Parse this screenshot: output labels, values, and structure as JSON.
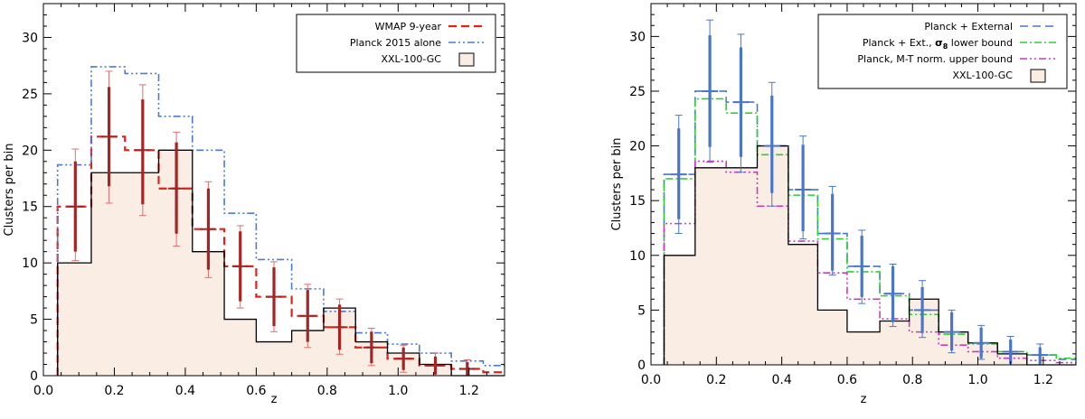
{
  "colors": {
    "fill": "#faede4",
    "xxl": "#000000",
    "wmap": "#e0221b",
    "wmapErr": "#a52525",
    "wmapErrThin": "#e06d6d",
    "planck": "#4a7ad8",
    "external": "#4a76c8",
    "sigma8": "#2fd02f",
    "mt": "#c83dbd"
  },
  "chart_data": [
    {
      "type": "histogram",
      "xlabel": "z",
      "ylabel": "Clusters per bin",
      "xlim": [
        0,
        1.3
      ],
      "ylim": [
        0,
        33
      ],
      "xticks": [
        "0.0",
        "0.2",
        "0.4",
        "0.6",
        "0.8",
        "1.0",
        "1.2"
      ],
      "yticks": [
        "0",
        "5",
        "10",
        "15",
        "20",
        "25",
        "30"
      ],
      "bin_edges": [
        0.04,
        0.135,
        0.23,
        0.325,
        0.42,
        0.51,
        0.6,
        0.7,
        0.79,
        0.88,
        0.97,
        1.06,
        1.15,
        1.24,
        1.3
      ],
      "legend_position": "top-right",
      "series": [
        {
          "name": "WMAP 9-year",
          "style": "dashed",
          "color_key": "wmap",
          "values": [
            15,
            21.2,
            20,
            16.6,
            13,
            9.7,
            7,
            5.3,
            4.3,
            2.5,
            1.5,
            0.9,
            0.6,
            0.3
          ]
        },
        {
          "name": "Planck 2015 alone",
          "style": "dashdotdot",
          "color_key": "planck",
          "values": [
            18.7,
            27.4,
            26.8,
            23,
            20,
            14.4,
            10.3,
            7.7,
            5.7,
            3.8,
            2.8,
            2,
            1.3,
            0.9
          ]
        },
        {
          "name": "XXL-100-GC",
          "style": "filled-step",
          "color_key": "xxl",
          "values": [
            10,
            18,
            18,
            20,
            11,
            5,
            3,
            4,
            6,
            3,
            2,
            1,
            0,
            0
          ]
        }
      ],
      "errorbars": {
        "color_key": "wmapErr",
        "x": [
          0.09,
          0.185,
          0.28,
          0.375,
          0.465,
          0.555,
          0.65,
          0.745,
          0.835,
          0.925,
          1.015,
          1.105,
          1.195
        ],
        "center": [
          15,
          21.2,
          20,
          16.6,
          13,
          9.7,
          7,
          5.3,
          4.3,
          2.5,
          1.5,
          0.9,
          0.6
        ],
        "inner": [
          [
            11,
            19
          ],
          [
            16.8,
            25.6
          ],
          [
            15.2,
            24.5
          ],
          [
            12.6,
            20.7
          ],
          [
            9.4,
            16.6
          ],
          [
            6.6,
            12.8
          ],
          [
            4.4,
            9.6
          ],
          [
            3,
            7.6
          ],
          [
            2.3,
            6.3
          ],
          [
            1.1,
            3.9
          ],
          [
            0.5,
            2.5
          ],
          [
            0.1,
            1.7
          ],
          [
            0,
            1.2
          ]
        ],
        "outer": [
          [
            10.2,
            20.1
          ],
          [
            15.3,
            27
          ],
          [
            14.2,
            25.8
          ],
          [
            11.5,
            21.6
          ],
          [
            8.7,
            17.2
          ],
          [
            6,
            13.3
          ],
          [
            3.9,
            10.1
          ],
          [
            2.5,
            8.1
          ],
          [
            1.9,
            6.8
          ],
          [
            0.9,
            4.2
          ],
          [
            0.3,
            2.7
          ],
          [
            0,
            2
          ],
          [
            0,
            1.4
          ]
        ]
      }
    },
    {
      "type": "histogram",
      "xlabel": "z",
      "ylabel": "Clusters per bin",
      "xlim": [
        0,
        1.3
      ],
      "ylim": [
        0,
        33
      ],
      "xticks": [
        "0.0",
        "0.2",
        "0.4",
        "0.6",
        "0.8",
        "1.0",
        "1.2"
      ],
      "yticks": [
        "0",
        "5",
        "10",
        "15",
        "20",
        "25",
        "30"
      ],
      "bin_edges": [
        0.04,
        0.135,
        0.23,
        0.325,
        0.42,
        0.51,
        0.6,
        0.7,
        0.79,
        0.88,
        0.97,
        1.06,
        1.15,
        1.24,
        1.3
      ],
      "legend_position": "top-right",
      "series": [
        {
          "name": "Planck + External",
          "style": "dashed",
          "color_key": "external",
          "values": [
            17.4,
            25,
            24,
            20,
            16,
            12,
            9,
            6.5,
            5,
            3,
            2,
            1.2,
            0.9,
            0.5
          ]
        },
        {
          "name_main": "Planck + Ext., ",
          "name_symbol": "σ",
          "name_sub": "8",
          "name_tail": " lower bound",
          "style": "dashdot",
          "color_key": "sigma8",
          "values": [
            17,
            24.3,
            23,
            19.2,
            15.5,
            11.5,
            8.5,
            6.3,
            4.6,
            2.8,
            1.9,
            1.2,
            0.9,
            0.6
          ]
        },
        {
          "name": "Planck, M-T norm. upper bound",
          "style": "dashdotdot",
          "color_key": "mt",
          "values": [
            12.9,
            18.6,
            17.6,
            14.5,
            11.3,
            8.4,
            6,
            4.2,
            3,
            1.8,
            1.2,
            0.6,
            0.4,
            0.2
          ]
        },
        {
          "name": "XXL-100-GC",
          "style": "filled-step",
          "color_key": "xxl",
          "values": [
            10,
            18,
            18,
            20,
            11,
            5,
            3,
            4,
            6,
            3,
            2,
            1,
            0,
            0
          ]
        }
      ],
      "errorbars": {
        "color_key": "external",
        "x": [
          0.085,
          0.18,
          0.275,
          0.37,
          0.465,
          0.555,
          0.645,
          0.74,
          0.83,
          0.92,
          1.01,
          1.1,
          1.19
        ],
        "center": [
          17.4,
          25,
          24,
          20,
          16,
          12,
          9,
          6.5,
          5,
          3,
          2,
          1.2,
          0.9
        ],
        "inner": [
          [
            13.3,
            21.6
          ],
          [
            19.9,
            30.1
          ],
          [
            19,
            29
          ],
          [
            15.7,
            24.6
          ],
          [
            12.2,
            20.1
          ],
          [
            8.6,
            15.6
          ],
          [
            6.2,
            11.8
          ],
          [
            3.9,
            9
          ],
          [
            2.9,
            7.1
          ],
          [
            1.3,
            4.8
          ],
          [
            0.6,
            3.4
          ],
          [
            0.1,
            2.3
          ],
          [
            0,
            1.6
          ]
        ],
        "outer": [
          [
            12,
            22.8
          ],
          [
            18.5,
            31.5
          ],
          [
            17.6,
            30.2
          ],
          [
            14.5,
            25.8
          ],
          [
            11.5,
            20.9
          ],
          [
            8.2,
            16.3
          ],
          [
            5.6,
            12.3
          ],
          [
            3.5,
            9.2
          ],
          [
            2.5,
            7.7
          ],
          [
            1.1,
            5
          ],
          [
            0.5,
            3.6
          ],
          [
            0,
            2.6
          ],
          [
            0,
            1.9
          ]
        ]
      }
    }
  ]
}
